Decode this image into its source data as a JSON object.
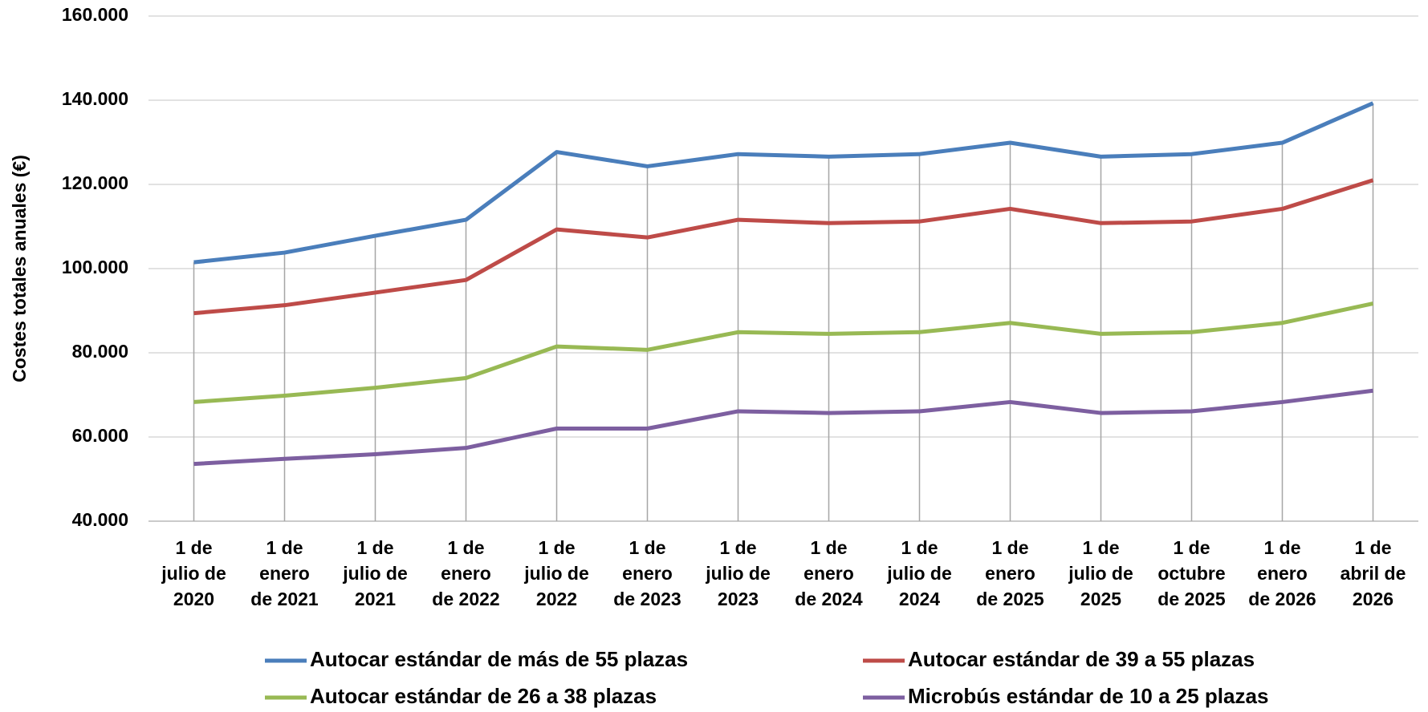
{
  "chart_data": {
    "type": "line",
    "y_label": "Costes totales anuales (€)",
    "categories": [
      "1 de\njulio de\n2020",
      "1 de\nenero\nde 2021",
      "1 de\njulio de\n2021",
      "1 de\nenero\nde 2022",
      "1 de\njulio de\n2022",
      "1 de\nenero\nde 2023",
      "1 de\njulio de\n2023",
      "1 de\nenero\nde 2024",
      "1 de\njulio de\n2024",
      "1 de\nenero\nde 2025",
      "1 de\njulio de\n2025",
      "1 de\noctubre\nde 2025",
      "1 de\nenero\nde 2026",
      "1 de\nabril de\n2026"
    ],
    "series": [
      {
        "name": "Autocar estándar de más de 55 plazas",
        "color": "#4a7ebb",
        "values": [
          101500,
          103800,
          107800,
          111600,
          127700,
          124300,
          127200,
          126600,
          127200,
          129900,
          126600,
          127200,
          129900,
          139300
        ]
      },
      {
        "name": "Autocar estándar de 39 a 55 plazas",
        "color": "#be4b48",
        "values": [
          89400,
          91300,
          94300,
          97300,
          109300,
          107400,
          111600,
          110800,
          111200,
          114200,
          110800,
          111200,
          114200,
          121000
        ]
      },
      {
        "name": "Autocar estándar de 26 a 38 plazas",
        "color": "#98b954",
        "values": [
          68300,
          69800,
          71700,
          74000,
          81500,
          80700,
          84900,
          84500,
          84900,
          87100,
          84500,
          84900,
          87100,
          91700
        ]
      },
      {
        "name": "Microbús estándar de 10 a 25 plazas",
        "color": "#7d5fa0",
        "values": [
          53600,
          54800,
          55900,
          57400,
          62000,
          62000,
          66100,
          65700,
          66100,
          68300,
          65700,
          66100,
          68300,
          71000
        ]
      }
    ],
    "ylim": [
      40000,
      160000
    ],
    "yticks": [
      {
        "value": 40000,
        "label": "40.000"
      },
      {
        "value": 60000,
        "label": "60.000"
      },
      {
        "value": 80000,
        "label": "80.000"
      },
      {
        "value": 100000,
        "label": "100.000"
      },
      {
        "value": 120000,
        "label": "120.000"
      },
      {
        "value": 140000,
        "label": "140.000"
      },
      {
        "value": 160000,
        "label": "160.000"
      }
    ],
    "grid": true,
    "legend": "bottom"
  }
}
